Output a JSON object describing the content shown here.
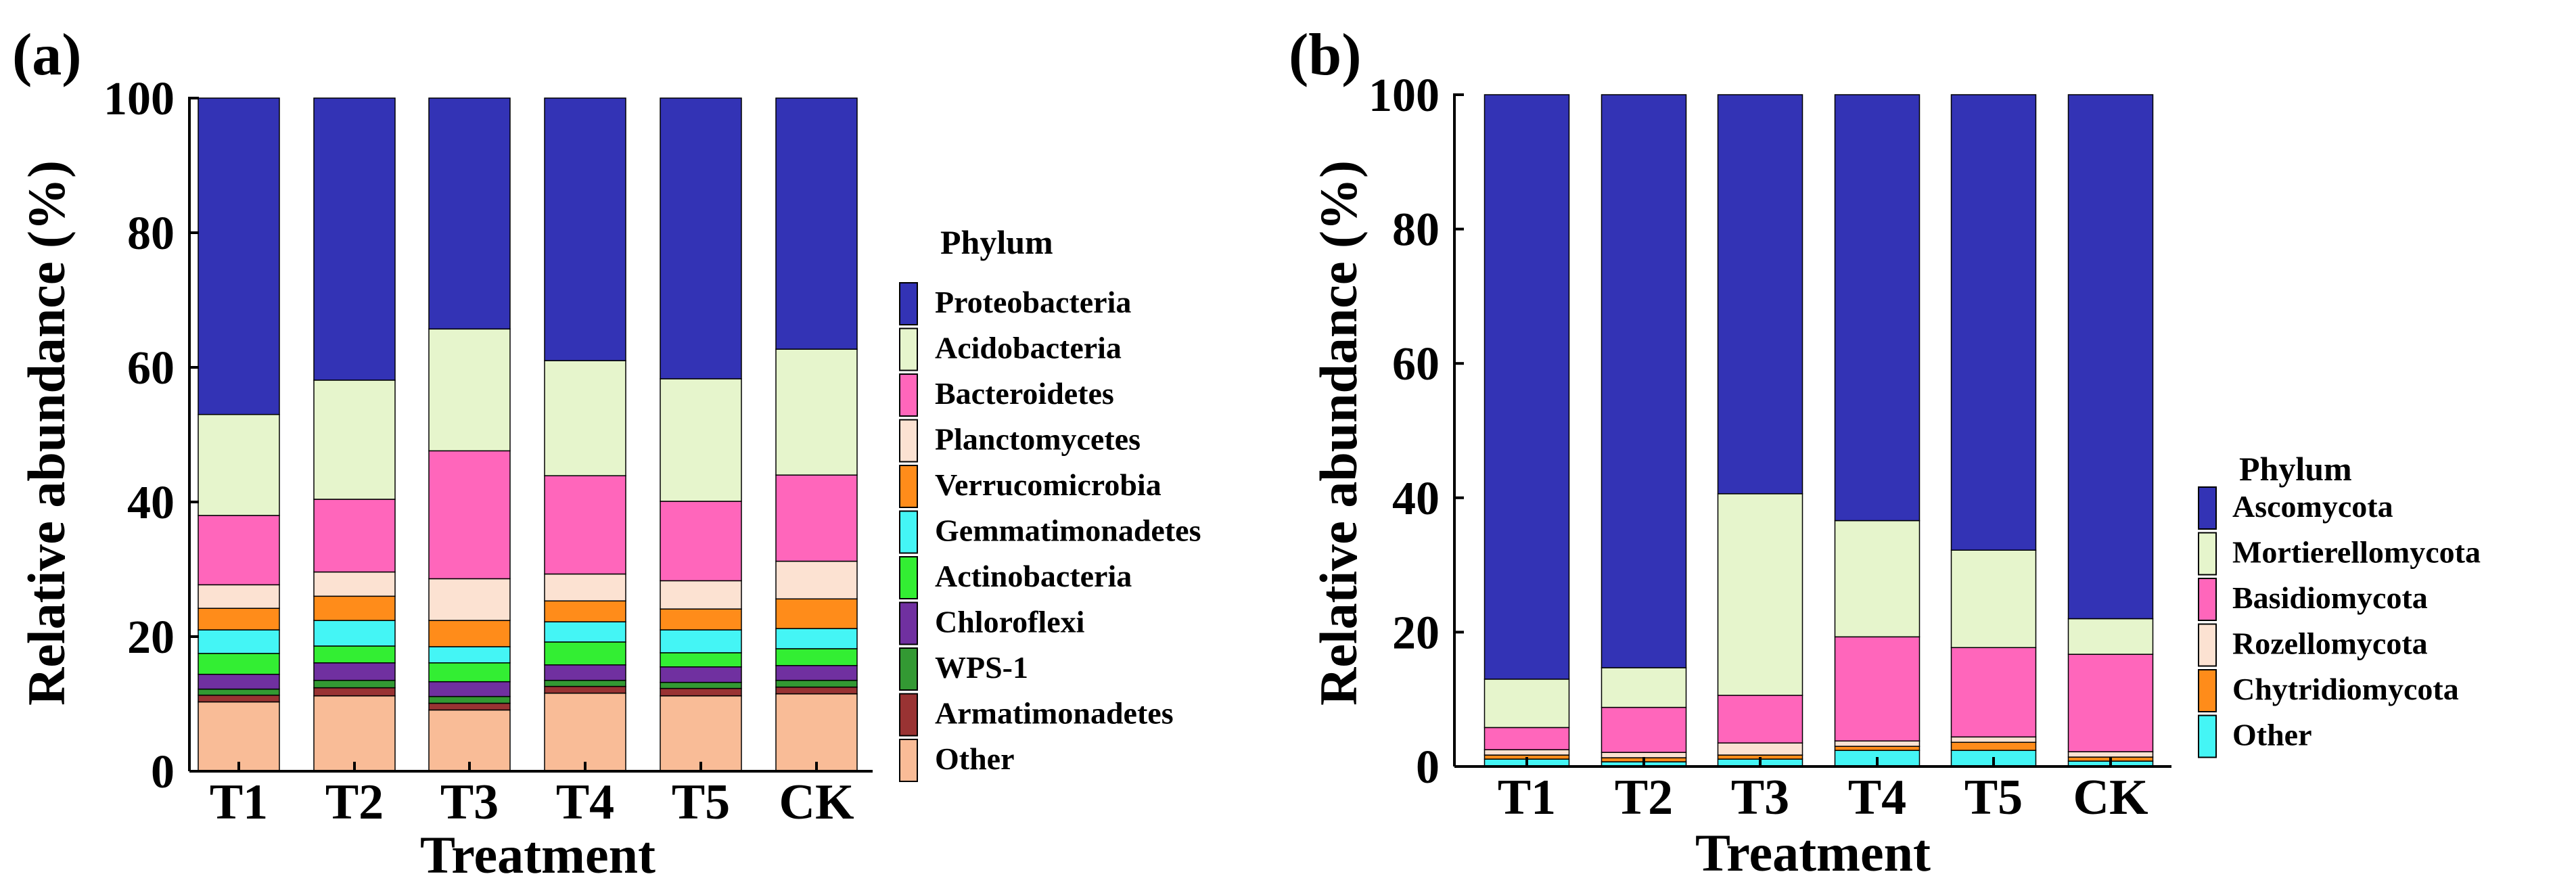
{
  "chart_data": [
    {
      "type": "bar",
      "stacked": true,
      "panel_label": "(a)",
      "xlabel": "Treatment",
      "ylabel": "Relative abundance (%)",
      "ylim": [
        0,
        100
      ],
      "yticks": [
        0,
        20,
        40,
        60,
        80,
        100
      ],
      "categories": [
        "T1",
        "T2",
        "T3",
        "T4",
        "T5",
        "CK"
      ],
      "legend_title": "Phylum",
      "legend_position": "right",
      "series": [
        {
          "name": "Other",
          "color": "#F9BC97",
          "values": [
            10.3,
            11.2,
            9.1,
            11.6,
            11.2,
            11.5
          ]
        },
        {
          "name": "Armatimonadetes",
          "color": "#993333",
          "values": [
            1.0,
            1.2,
            1.0,
            1.0,
            1.1,
            1.0
          ]
        },
        {
          "name": "WPS-1",
          "color": "#339933",
          "values": [
            0.9,
            1.1,
            1.0,
            0.9,
            0.9,
            1.0
          ]
        },
        {
          "name": "Chloroflexi",
          "color": "#7030A0",
          "values": [
            2.2,
            2.6,
            2.2,
            2.3,
            2.3,
            2.2
          ]
        },
        {
          "name": "Actinobacteria",
          "color": "#33EE33",
          "values": [
            3.1,
            2.5,
            2.8,
            3.4,
            2.1,
            2.5
          ]
        },
        {
          "name": "Gemmatimonadetes",
          "color": "#44F5F5",
          "values": [
            3.5,
            3.8,
            2.4,
            3.0,
            3.4,
            3.0
          ]
        },
        {
          "name": "Verrucomicrobia",
          "color": "#FF8C1A",
          "values": [
            3.2,
            3.6,
            3.9,
            3.1,
            3.1,
            4.4
          ]
        },
        {
          "name": "Planctomycetes",
          "color": "#FCE2D2",
          "values": [
            3.5,
            3.6,
            6.2,
            4.0,
            4.2,
            5.6
          ]
        },
        {
          "name": "Bacteroidetes",
          "color": "#FF66BB",
          "values": [
            10.3,
            10.8,
            19.0,
            14.6,
            11.8,
            12.8
          ]
        },
        {
          "name": "Acidobacteria",
          "color": "#E6F5CC",
          "values": [
            15.0,
            17.7,
            18.1,
            17.1,
            18.2,
            18.7
          ]
        },
        {
          "name": "Proteobacteria",
          "color": "#3333B5",
          "values": [
            47.0,
            41.9,
            34.3,
            39.0,
            41.7,
            37.3
          ]
        }
      ]
    },
    {
      "type": "bar",
      "stacked": true,
      "panel_label": "(b)",
      "xlabel": "Treatment",
      "ylabel": "Relative abundance (%)",
      "ylim": [
        0,
        100
      ],
      "yticks": [
        0,
        20,
        40,
        60,
        80,
        100
      ],
      "categories": [
        "T1",
        "T2",
        "T3",
        "T4",
        "T5",
        "CK"
      ],
      "legend_title": "Phylum",
      "legend_position": "right",
      "series": [
        {
          "name": "Other",
          "color": "#44F5F5",
          "values": [
            1.1,
            0.7,
            1.1,
            2.4,
            2.4,
            0.8
          ]
        },
        {
          "name": "Chytridiomycota",
          "color": "#FF8C1A",
          "values": [
            0.6,
            0.6,
            0.6,
            0.6,
            1.2,
            0.6
          ]
        },
        {
          "name": "Rozellomycota",
          "color": "#FCE2D2",
          "values": [
            0.8,
            0.8,
            1.8,
            0.8,
            0.8,
            0.8
          ]
        },
        {
          "name": "Basidiomycota",
          "color": "#FF66BB",
          "values": [
            3.3,
            6.7,
            7.1,
            15.5,
            13.3,
            14.5
          ]
        },
        {
          "name": "Mortierellomycota",
          "color": "#E6F5CC",
          "values": [
            7.2,
            5.9,
            30.0,
            17.3,
            14.5,
            5.3
          ]
        },
        {
          "name": "Ascomycota",
          "color": "#3333B5",
          "values": [
            87.0,
            85.3,
            59.4,
            63.4,
            67.8,
            78.0
          ]
        }
      ]
    }
  ]
}
